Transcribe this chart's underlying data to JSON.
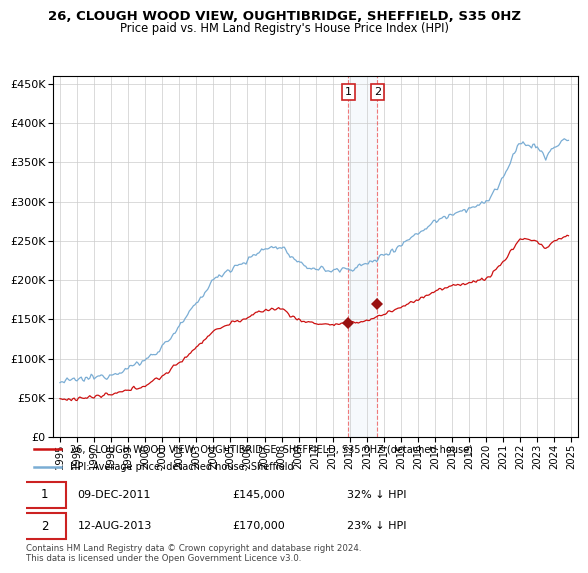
{
  "title1": "26, CLOUGH WOOD VIEW, OUGHTIBRIDGE, SHEFFIELD, S35 0HZ",
  "title2": "Price paid vs. HM Land Registry's House Price Index (HPI)",
  "legend_line1": "26, CLOUGH WOOD VIEW, OUGHTIBRIDGE, SHEFFIELD, S35 0HZ (detached house)",
  "legend_line2": "HPI: Average price, detached house, Sheffield",
  "hpi_color": "#7aadd4",
  "price_color": "#cc1111",
  "marker_color": "#991111",
  "shading_color": "#dce9f5",
  "sale1_date_x": 2011.92,
  "sale2_date_x": 2013.62,
  "sale1_price": 145000,
  "sale2_price": 170000,
  "sale1_info": "09-DEC-2011",
  "sale2_info": "12-AUG-2013",
  "sale1_amount": "£145,000",
  "sale2_amount": "£170,000",
  "sale1_hpi": "32% ↓ HPI",
  "sale2_hpi": "23% ↓ HPI",
  "copyright": "Contains HM Land Registry data © Crown copyright and database right 2024.\nThis data is licensed under the Open Government Licence v3.0.",
  "ylim": [
    0,
    460000
  ],
  "xlim_start": 1994.6,
  "xlim_end": 2025.4,
  "yticks": [
    0,
    50000,
    100000,
    150000,
    200000,
    250000,
    300000,
    350000,
    400000,
    450000
  ]
}
